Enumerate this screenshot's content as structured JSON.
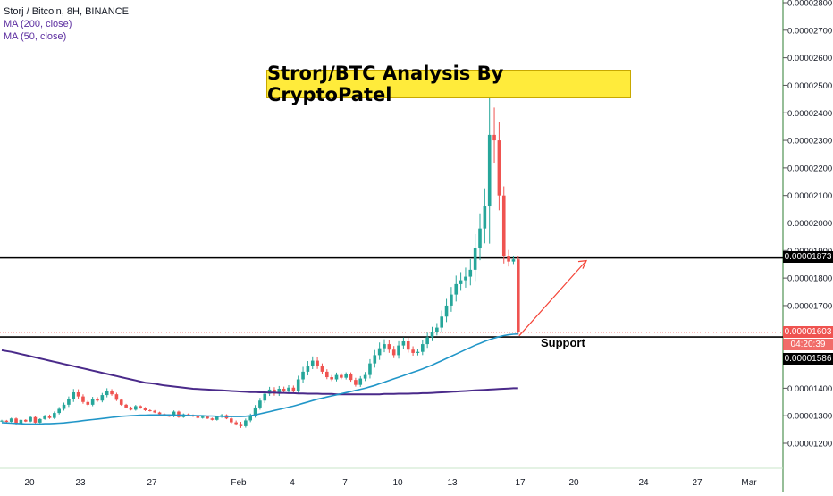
{
  "legend": {
    "symbol": "Storj / Bitcoin, 8H, BINANCE",
    "ma200": "MA (200, close)",
    "ma50": "MA (50, close)"
  },
  "annotation": {
    "title": "StrorJ/BTC Analysis By CryptoPatel",
    "support": "Support"
  },
  "price_tags": {
    "resistance": "0.00001873",
    "last_price": "0.00001603",
    "countdown": "04:20:39",
    "support": "0.00001586"
  },
  "colors": {
    "up": "#26a69a",
    "down": "#ef5350",
    "ma200": "#4a2a8a",
    "ma50": "#2196c8",
    "arrow": "#f44336",
    "title_bg": "#ffeb3b"
  },
  "chart_data": {
    "type": "candlestick",
    "symbol": "Storj / Bitcoin, 8H, BINANCE",
    "x_ticks": [
      "20",
      "23",
      "27",
      "Feb",
      "4",
      "7",
      "10",
      "13",
      "17",
      "20",
      "24",
      "27",
      "Mar"
    ],
    "y_ticks": [
      "0.00001200",
      "0.00001300",
      "0.00001400",
      "0.00001500",
      "0.00001600",
      "0.00001700",
      "0.00001800",
      "0.00001900",
      "0.00002000",
      "0.00002100",
      "0.00002200",
      "0.00002300",
      "0.00002400",
      "0.00002500",
      "0.00002600",
      "0.00002700",
      "0.00002800"
    ],
    "y_tick_values": [
      1200,
      1300,
      1400,
      1500,
      1600,
      1700,
      1800,
      1900,
      2000,
      2100,
      2200,
      2300,
      2400,
      2500,
      2600,
      2700,
      2800
    ],
    "y_unit": "1e-8 BTC",
    "resistance_level": 1873,
    "support_level": 1586,
    "last_price": 1603,
    "closes": [
      1282,
      1278,
      1290,
      1271,
      1285,
      1279,
      1295,
      1275,
      1288,
      1300,
      1292,
      1310,
      1325,
      1340,
      1360,
      1385,
      1370,
      1350,
      1340,
      1362,
      1355,
      1375,
      1390,
      1378,
      1358,
      1340,
      1330,
      1322,
      1335,
      1328,
      1320,
      1318,
      1312,
      1306,
      1300,
      1298,
      1315,
      1295,
      1305,
      1302,
      1298,
      1292,
      1297,
      1290,
      1285,
      1296,
      1302,
      1290,
      1276,
      1270,
      1262,
      1283,
      1300,
      1330,
      1355,
      1380,
      1395,
      1380,
      1398,
      1390,
      1402,
      1390,
      1432,
      1460,
      1482,
      1500,
      1480,
      1460,
      1440,
      1432,
      1448,
      1438,
      1450,
      1430,
      1412,
      1435,
      1448,
      1490,
      1520,
      1545,
      1560,
      1540,
      1520,
      1555,
      1570,
      1540,
      1528,
      1532,
      1560,
      1585,
      1605,
      1620,
      1660,
      1700,
      1740,
      1778,
      1792,
      1805,
      1830,
      1910,
      1980,
      2060,
      2320,
      2300,
      2100,
      1880,
      1860,
      1868,
      1603
    ],
    "ma200": [
      1538,
      1535,
      1532,
      1528,
      1524,
      1520,
      1516,
      1512,
      1508,
      1504,
      1500,
      1496,
      1492,
      1488,
      1484,
      1480,
      1476,
      1472,
      1468,
      1464,
      1460,
      1456,
      1452,
      1448,
      1444,
      1440,
      1436,
      1432,
      1428,
      1424,
      1420,
      1418,
      1416,
      1413,
      1410,
      1408,
      1406,
      1404,
      1402,
      1400,
      1398,
      1397,
      1396,
      1395,
      1394,
      1393,
      1392,
      1391,
      1390,
      1389,
      1388,
      1387,
      1386,
      1386,
      1385,
      1385,
      1384,
      1384,
      1383,
      1383,
      1382,
      1382,
      1381,
      1381,
      1380,
      1380,
      1380,
      1379,
      1379,
      1379,
      1378,
      1378,
      1378,
      1378,
      1378,
      1378,
      1378,
      1378,
      1378,
      1378,
      1379,
      1379,
      1379,
      1380,
      1380,
      1380,
      1381,
      1381,
      1382,
      1382,
      1383,
      1384,
      1385,
      1386,
      1387,
      1388,
      1389,
      1390,
      1391,
      1392,
      1393,
      1394,
      1395,
      1396,
      1397,
      1398,
      1399,
      1400,
      1400
    ],
    "ma50": [
      1275,
      1274,
      1273,
      1272,
      1271,
      1270,
      1270,
      1270,
      1270,
      1271,
      1271,
      1272,
      1273,
      1274,
      1276,
      1278,
      1280,
      1282,
      1284,
      1286,
      1288,
      1290,
      1292,
      1294,
      1296,
      1298,
      1299,
      1300,
      1301,
      1302,
      1302,
      1303,
      1303,
      1303,
      1303,
      1303,
      1302,
      1302,
      1302,
      1301,
      1301,
      1300,
      1300,
      1299,
      1299,
      1298,
      1298,
      1297,
      1297,
      1297,
      1297,
      1298,
      1300,
      1303,
      1307,
      1311,
      1315,
      1319,
      1323,
      1327,
      1331,
      1335,
      1340,
      1345,
      1350,
      1355,
      1360,
      1364,
      1368,
      1372,
      1376,
      1380,
      1384,
      1388,
      1392,
      1396,
      1400,
      1405,
      1410,
      1416,
      1422,
      1428,
      1434,
      1440,
      1446,
      1452,
      1458,
      1464,
      1470,
      1477,
      1484,
      1492,
      1500,
      1508,
      1516,
      1524,
      1532,
      1540,
      1548,
      1556,
      1563,
      1570,
      1576,
      1582,
      1587,
      1591,
      1594,
      1596,
      1597
    ]
  }
}
